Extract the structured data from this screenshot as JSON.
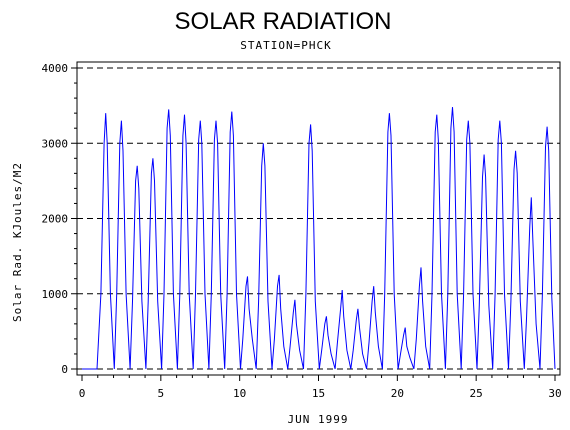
{
  "chart_data": {
    "type": "line",
    "title": "SOLAR RADIATION",
    "subtitle": "STATION=PHCK",
    "xlabel": "JUN 1999",
    "ylabel": "Solar Rad. KJoules/M2",
    "xlim": [
      0,
      30
    ],
    "ylim": [
      0,
      4000
    ],
    "xticks": [
      0,
      5,
      10,
      15,
      20,
      25,
      30
    ],
    "yticks": [
      0,
      1000,
      2000,
      3000,
      4000
    ],
    "grid": "horizontal dashed",
    "colors": {
      "line": "#0000ff",
      "axis": "#000000",
      "grid": "#000000"
    },
    "series": [
      {
        "name": "",
        "daily_peaks": [
          3400,
          3300,
          2700,
          2800,
          3450,
          3380,
          3300,
          3300,
          3420,
          1230,
          3000,
          1250,
          920,
          3250,
          700,
          1050,
          800,
          1100,
          3400,
          550,
          1350,
          3380,
          3480,
          3300,
          2850,
          3300,
          2900,
          2280,
          3220,
          0
        ],
        "x": [
          0.0,
          0.95,
          1.2,
          1.4,
          1.5,
          1.6,
          1.8,
          2.05,
          2.2,
          2.4,
          2.5,
          2.6,
          2.8,
          3.05,
          3.2,
          3.4,
          3.5,
          3.6,
          3.8,
          4.05,
          4.2,
          4.4,
          4.5,
          4.6,
          4.8,
          5.05,
          5.2,
          5.4,
          5.5,
          5.6,
          5.8,
          6.05,
          6.2,
          6.4,
          6.5,
          6.6,
          6.8,
          7.05,
          7.2,
          7.4,
          7.5,
          7.6,
          7.8,
          8.05,
          8.2,
          8.4,
          8.5,
          8.6,
          8.8,
          9.05,
          9.2,
          9.4,
          9.5,
          9.6,
          9.8,
          10.05,
          10.2,
          10.4,
          10.5,
          10.6,
          10.8,
          11.05,
          11.2,
          11.4,
          11.5,
          11.6,
          11.8,
          12.05,
          12.2,
          12.4,
          12.5,
          12.6,
          12.8,
          13.05,
          13.2,
          13.4,
          13.5,
          13.6,
          13.8,
          14.05,
          14.2,
          14.4,
          14.5,
          14.6,
          14.8,
          15.05,
          15.2,
          15.4,
          15.5,
          15.6,
          15.8,
          16.05,
          16.2,
          16.4,
          16.5,
          16.6,
          16.8,
          17.05,
          17.2,
          17.4,
          17.5,
          17.6,
          17.8,
          18.05,
          18.2,
          18.4,
          18.5,
          18.6,
          18.8,
          19.05,
          19.2,
          19.4,
          19.5,
          19.6,
          19.8,
          20.05,
          20.2,
          20.4,
          20.5,
          20.6,
          20.8,
          21.05,
          21.2,
          21.4,
          21.5,
          21.6,
          21.8,
          22.05,
          22.2,
          22.4,
          22.5,
          22.6,
          22.8,
          23.05,
          23.2,
          23.4,
          23.5,
          23.6,
          23.8,
          24.05,
          24.2,
          24.4,
          24.5,
          24.6,
          24.8,
          25.05,
          25.2,
          25.4,
          25.5,
          25.6,
          25.8,
          26.05,
          26.2,
          26.4,
          26.5,
          26.6,
          26.8,
          27.05,
          27.2,
          27.4,
          27.5,
          27.6,
          27.8,
          28.05,
          28.2,
          28.4,
          28.5,
          28.6,
          28.8,
          29.05,
          29.2,
          29.4,
          29.5,
          29.6,
          29.8,
          30.0
        ],
        "y": [
          0,
          0,
          1000,
          3000,
          3400,
          3000,
          1000,
          0,
          1000,
          3000,
          3300,
          2900,
          1000,
          0,
          900,
          2500,
          2700,
          2400,
          900,
          0,
          900,
          2600,
          2800,
          2500,
          900,
          0,
          1000,
          3200,
          3450,
          3100,
          1000,
          0,
          1000,
          3100,
          3380,
          3000,
          1000,
          0,
          1000,
          3050,
          3300,
          3000,
          1000,
          0,
          1000,
          3050,
          3300,
          3000,
          1000,
          0,
          1000,
          3150,
          3420,
          3100,
          1000,
          0,
          400,
          1100,
          1230,
          800,
          400,
          0,
          900,
          2700,
          3000,
          2700,
          900,
          0,
          400,
          1100,
          1250,
          800,
          300,
          0,
          300,
          750,
          920,
          600,
          250,
          0,
          1000,
          3000,
          3250,
          2900,
          900,
          0,
          250,
          600,
          700,
          450,
          200,
          0,
          350,
          800,
          1050,
          700,
          250,
          0,
          250,
          650,
          800,
          550,
          200,
          0,
          350,
          900,
          1100,
          750,
          300,
          0,
          1000,
          3150,
          3400,
          3100,
          1000,
          0,
          200,
          450,
          550,
          300,
          150,
          0,
          400,
          1100,
          1350,
          900,
          300,
          0,
          1000,
          3150,
          3380,
          3050,
          1000,
          0,
          1000,
          3200,
          3480,
          3150,
          1000,
          0,
          1000,
          3050,
          3300,
          3000,
          1000,
          0,
          850,
          2550,
          2850,
          2550,
          850,
          0,
          1000,
          3050,
          3300,
          3000,
          1000,
          0,
          900,
          2650,
          2900,
          2600,
          900,
          0,
          700,
          1900,
          2280,
          1700,
          600,
          0,
          1000,
          2950,
          3220,
          2900,
          950,
          0
        ]
      }
    ]
  }
}
